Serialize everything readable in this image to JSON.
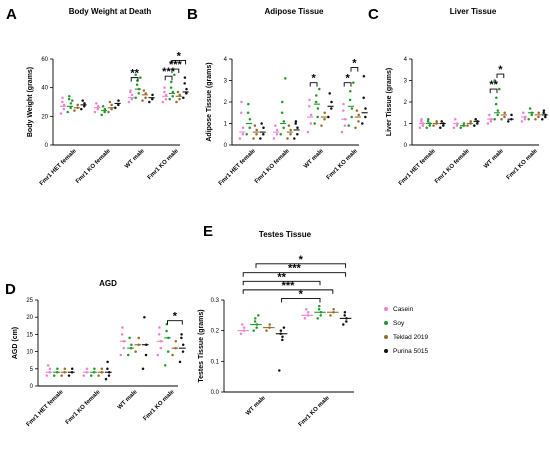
{
  "colors": {
    "Casein": "#f07fd4",
    "Soy": "#1e9a2a",
    "Teklad 2019": "#9a6a2a",
    "Purina 5015": "#111111"
  },
  "legend": {
    "items": [
      "Casein",
      "Soy",
      "Teklad 2019",
      "Purina 5015"
    ]
  },
  "chart_data": [
    {
      "id": "A",
      "letter": "A",
      "type": "scatter",
      "title": "Body Weight at Death",
      "ylabel": "Body Weight (grams)",
      "ylim": [
        0,
        60
      ],
      "yticks": [
        0,
        20,
        40,
        60
      ],
      "categories": [
        "Fmr1 HET female",
        "Fmr1 KO female",
        "WT male",
        "Fmr1 KO male"
      ],
      "means": [
        [
          27,
          27,
          26,
          28
        ],
        [
          26,
          24,
          26,
          29
        ],
        [
          33,
          39,
          35,
          33
        ],
        [
          34,
          36,
          34,
          37
        ]
      ],
      "points": [
        [
          [
            22,
            25,
            28,
            30,
            33
          ],
          [
            23,
            26,
            29,
            32,
            34,
            31
          ],
          [
            24,
            26,
            28
          ],
          [
            25,
            27,
            29,
            31
          ]
        ],
        [
          [
            23,
            25,
            27,
            29
          ],
          [
            21,
            23,
            25,
            27
          ],
          [
            23,
            25,
            28,
            30
          ],
          [
            26,
            28,
            31
          ]
        ],
        [
          [
            30,
            32,
            35,
            37,
            38
          ],
          [
            33,
            36,
            39,
            42,
            45,
            47,
            49
          ],
          [
            31,
            33,
            36,
            38
          ],
          [
            30,
            32,
            35
          ]
        ],
        [
          [
            30,
            32,
            35,
            37,
            40
          ],
          [
            32,
            34,
            37,
            40,
            44,
            49
          ],
          [
            30,
            32,
            35,
            37
          ],
          [
            33,
            36,
            39,
            43,
            47
          ]
        ]
      ],
      "sig": [
        {
          "from": [
            2,
            0
          ],
          "to": [
            2,
            1
          ],
          "label": "**",
          "y": 47
        },
        {
          "from": [
            3,
            0
          ],
          "to": [
            3,
            1
          ],
          "label": "***",
          "y": 48
        },
        {
          "from": [
            3,
            1
          ],
          "to": [
            3,
            2
          ],
          "label": "***",
          "y": 53
        },
        {
          "from": [
            3,
            1
          ],
          "to": [
            3,
            3
          ],
          "label": "*",
          "y": 59
        }
      ]
    },
    {
      "id": "B",
      "letter": "B",
      "type": "scatter",
      "title": "Adipose Tissue",
      "ylabel": "Adipose Tissue (grams)",
      "ylim": [
        0,
        4
      ],
      "yticks": [
        0,
        1,
        2,
        3,
        4
      ],
      "categories": [
        "Fmr1 HET female",
        "Fmr1 KO female",
        "WT male",
        "Fmr1 KO male"
      ],
      "means": [
        [
          0.6,
          1.0,
          0.6,
          0.6
        ],
        [
          0.6,
          1.0,
          0.6,
          0.7
        ],
        [
          1.3,
          1.9,
          1.3,
          1.8
        ],
        [
          1.2,
          1.8,
          1.3,
          1.5
        ]
      ],
      "points": [
        [
          [
            0.3,
            0.5,
            0.8,
            1.5,
            2.0
          ],
          [
            0.5,
            0.8,
            1.2,
            1.5,
            1.9
          ],
          [
            0.3,
            0.5,
            0.7,
            0.9
          ],
          [
            0.3,
            0.5,
            0.8,
            1.0
          ]
        ],
        [
          [
            0.3,
            0.5,
            0.7,
            0.9
          ],
          [
            0.5,
            0.8,
            1.1,
            1.5,
            2.0,
            3.1
          ],
          [
            0.3,
            0.5,
            0.7,
            0.9
          ],
          [
            0.3,
            0.5,
            0.8,
            1.0,
            1.1
          ]
        ],
        [
          [
            0.6,
            1.0,
            1.4,
            1.8,
            2.1
          ],
          [
            1.0,
            1.3,
            1.7,
            2.0,
            2.3,
            2.6
          ],
          [
            0.9,
            1.2,
            1.5
          ],
          [
            1.3,
            1.7,
            2.0,
            2.4
          ]
        ],
        [
          [
            0.6,
            0.9,
            1.2,
            1.6,
            1.9
          ],
          [
            0.9,
            1.3,
            1.7,
            2.1,
            2.5,
            2.9
          ],
          [
            0.8,
            1.1,
            1.4,
            1.6
          ],
          [
            1.0,
            1.3,
            1.7,
            2.2,
            3.2
          ]
        ]
      ],
      "sig": [
        {
          "from": [
            2,
            0
          ],
          "to": [
            2,
            1
          ],
          "label": "*",
          "y": 2.9
        },
        {
          "from": [
            3,
            0
          ],
          "to": [
            3,
            1
          ],
          "label": "*",
          "y": 2.9
        },
        {
          "from": [
            3,
            1
          ],
          "to": [
            3,
            2
          ],
          "label": "*",
          "y": 3.6
        }
      ]
    },
    {
      "id": "C",
      "letter": "C",
      "type": "scatter",
      "title": "Liver Tissue",
      "ylabel": "Liver Tissue (grams)",
      "ylim": [
        0,
        4
      ],
      "yticks": [
        0,
        1,
        2,
        3,
        4
      ],
      "categories": [
        "Fmr1 HET female",
        "Fmr1 KO female",
        "WT male",
        "Fmr1 KO male"
      ],
      "means": [
        [
          1.0,
          1.0,
          1.0,
          1.0
        ],
        [
          1.0,
          0.9,
          1.0,
          1.1
        ],
        [
          1.2,
          1.5,
          1.4,
          1.2
        ],
        [
          1.3,
          1.5,
          1.4,
          1.4
        ]
      ],
      "points": [
        [
          [
            0.8,
            0.9,
            1.0,
            1.1,
            1.2
          ],
          [
            0.8,
            0.9,
            1.0,
            1.1,
            1.2
          ],
          [
            0.9,
            1.0,
            1.1
          ],
          [
            0.8,
            0.9,
            1.0,
            1.1
          ]
        ],
        [
          [
            0.8,
            0.9,
            1.0,
            1.2
          ],
          [
            0.8,
            0.9,
            1.0
          ],
          [
            0.9,
            1.0,
            1.1
          ],
          [
            0.9,
            1.0,
            1.1,
            1.2
          ]
        ],
        [
          [
            1.0,
            1.1,
            1.2,
            1.4
          ],
          [
            1.2,
            1.4,
            1.6,
            1.9,
            2.2,
            2.6,
            3.0
          ],
          [
            1.2,
            1.3,
            1.5
          ],
          [
            1.1,
            1.2,
            1.4
          ]
        ],
        [
          [
            1.1,
            1.2,
            1.3,
            1.5
          ],
          [
            1.2,
            1.4,
            1.5,
            1.7
          ],
          [
            1.2,
            1.3,
            1.5
          ],
          [
            1.2,
            1.3,
            1.4,
            1.5,
            1.6
          ]
        ]
      ],
      "sig": [
        {
          "from": [
            2,
            0
          ],
          "to": [
            2,
            1
          ],
          "label": "**",
          "y": 2.6
        },
        {
          "from": [
            2,
            1
          ],
          "to": [
            2,
            2
          ],
          "label": "*",
          "y": 3.3
        }
      ]
    },
    {
      "id": "D",
      "letter": "D",
      "type": "scatter",
      "title": "AGD",
      "ylabel": "AGD (cm)",
      "ylim": [
        0,
        25
      ],
      "yticks": [
        0,
        5,
        10,
        15,
        20,
        25
      ],
      "categories": [
        "Fmr1 HET female",
        "Fmr1 KO female",
        "WT male",
        "Fmr1 KO male"
      ],
      "means": [
        [
          4,
          4,
          4,
          4
        ],
        [
          4,
          4,
          4,
          4
        ],
        [
          13,
          11,
          12,
          12
        ],
        [
          13,
          14,
          11,
          11
        ]
      ],
      "points": [
        [
          [
            3,
            4,
            5,
            6
          ],
          [
            3,
            4,
            5
          ],
          [
            3,
            4,
            5
          ],
          [
            3,
            4,
            5
          ]
        ],
        [
          [
            3,
            4,
            5
          ],
          [
            3,
            4,
            5
          ],
          [
            3,
            4,
            5
          ],
          [
            2,
            3,
            4,
            5,
            7
          ]
        ],
        [
          [
            9,
            11,
            13,
            15,
            17
          ],
          [
            9,
            11,
            12,
            14
          ],
          [
            10,
            12,
            14
          ],
          [
            5,
            9,
            12,
            20
          ]
        ],
        [
          [
            9,
            11,
            13,
            15,
            17
          ],
          [
            6,
            10,
            14,
            16,
            18
          ],
          [
            9,
            11,
            13
          ],
          [
            7,
            10,
            12,
            14,
            15
          ]
        ]
      ],
      "sig": [
        {
          "from": [
            3,
            1
          ],
          "to": [
            3,
            3
          ],
          "label": "*",
          "y": 19
        }
      ]
    },
    {
      "id": "E",
      "letter": "E",
      "type": "scatter",
      "title": "Testes Tissue",
      "ylabel": "Testes Tissue (grams)",
      "ylim": [
        0.0,
        0.3
      ],
      "yticks": [
        0.0,
        0.1,
        0.2,
        0.3
      ],
      "categories": [
        "WT male",
        "Fmr1 KO male"
      ],
      "means": [
        [
          0.2,
          0.22,
          0.21,
          0.19
        ],
        [
          0.25,
          0.26,
          0.26,
          0.24
        ]
      ],
      "points": [
        [
          [
            0.19,
            0.2,
            0.21,
            0.22
          ],
          [
            0.2,
            0.21,
            0.22,
            0.23,
            0.24,
            0.25
          ],
          [
            0.2,
            0.21,
            0.22
          ],
          [
            0.07,
            0.17,
            0.18,
            0.19,
            0.2,
            0.21
          ]
        ],
        [
          [
            0.24,
            0.25,
            0.26,
            0.27
          ],
          [
            0.24,
            0.25,
            0.26,
            0.27,
            0.28
          ],
          [
            0.25,
            0.26,
            0.27
          ],
          [
            0.22,
            0.23,
            0.24,
            0.25,
            0.26
          ]
        ]
      ],
      "sig": [
        {
          "from": [
            0,
            3
          ],
          "to": [
            1,
            1
          ],
          "label": "*",
          "y": 0.305
        },
        {
          "from": [
            0,
            0
          ],
          "to": [
            1,
            2
          ],
          "label": "***",
          "y": 0.333
        },
        {
          "from": [
            0,
            0
          ],
          "to": [
            1,
            1
          ],
          "label": "**",
          "y": 0.361
        },
        {
          "from": [
            0,
            0
          ],
          "to": [
            1,
            3
          ],
          "label": "***",
          "y": 0.389
        },
        {
          "from": [
            0,
            1
          ],
          "to": [
            1,
            3
          ],
          "label": "*",
          "y": 0.418
        }
      ]
    }
  ]
}
